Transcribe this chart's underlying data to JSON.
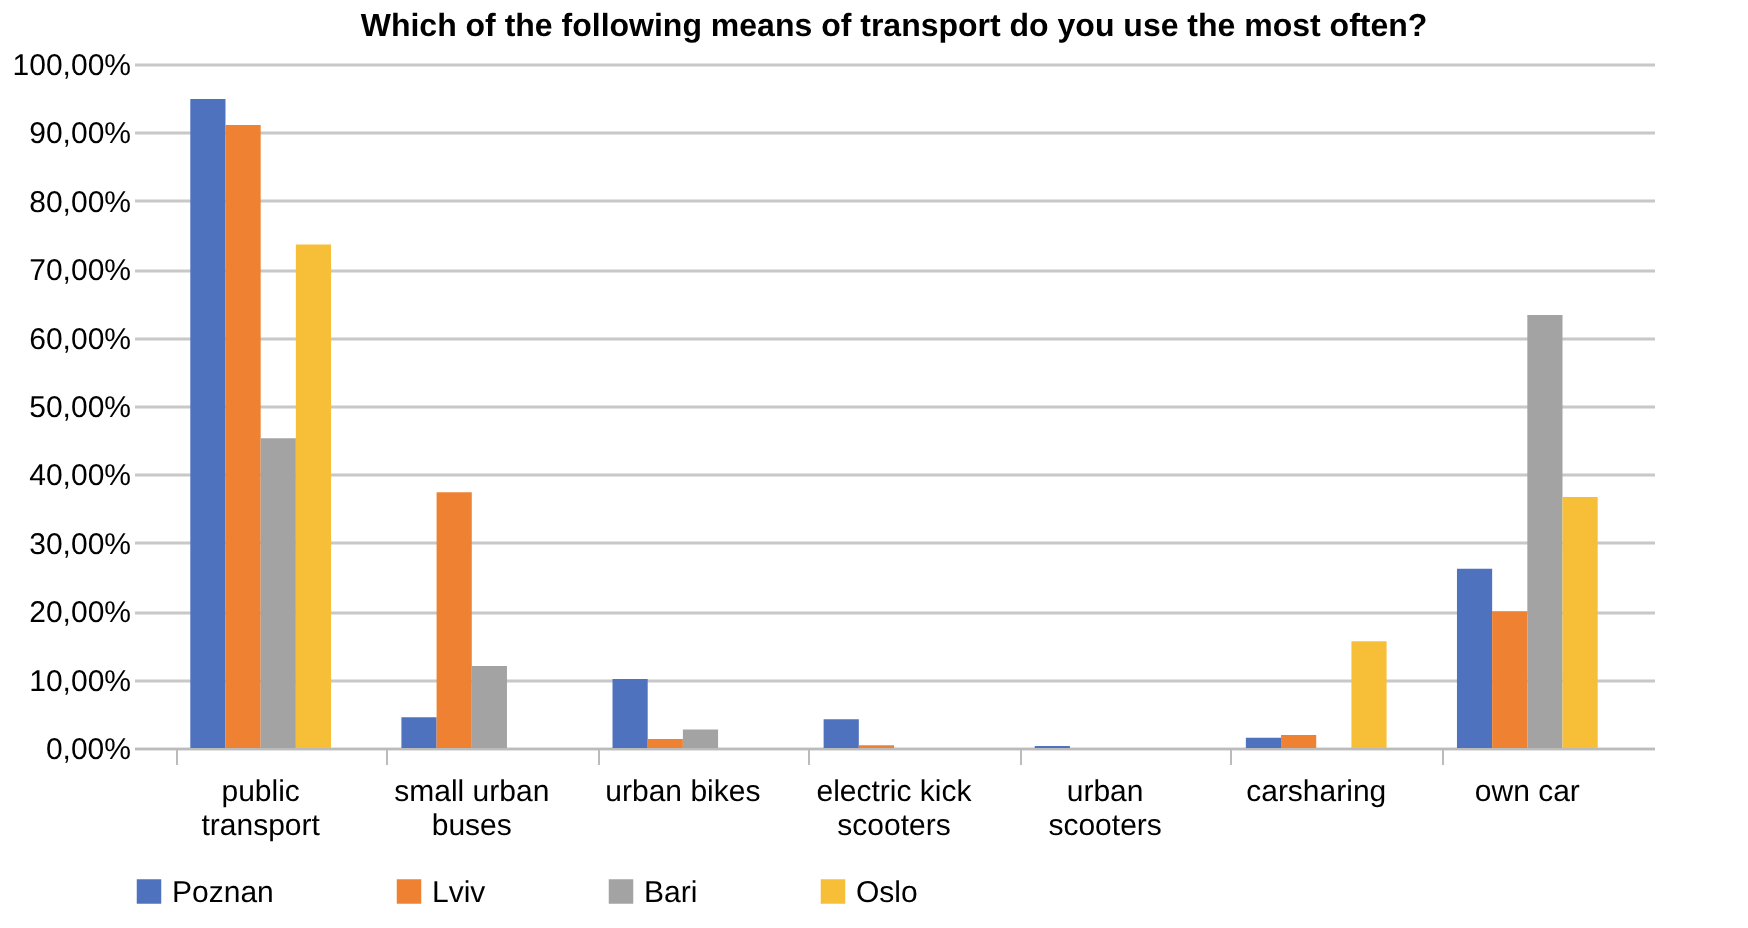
{
  "chart_data": {
    "type": "bar",
    "title": "Which of the following means of transport do you use the most often?",
    "categories": [
      "public transport",
      "small urban buses",
      "urban bikes",
      "electric kick scooters",
      "urban scooters",
      "carsharing",
      "own car"
    ],
    "series": [
      {
        "name": "Poznan",
        "color": "#4f72be",
        "values": [
          94.9,
          4.5,
          10.1,
          4.2,
          0.3,
          1.5,
          26.2
        ]
      },
      {
        "name": "Lviv",
        "color": "#ef8232",
        "values": [
          91.1,
          37.4,
          1.3,
          0.4,
          0,
          1.9,
          20.0
        ]
      },
      {
        "name": "Bari",
        "color": "#a3a3a3",
        "values": [
          45.3,
          12.0,
          2.7,
          0,
          0,
          0,
          63.3
        ]
      },
      {
        "name": "Oslo",
        "color": "#f7bf38",
        "values": [
          73.6,
          0,
          0,
          0,
          0,
          15.6,
          36.7
        ]
      }
    ],
    "ylim": [
      0,
      100
    ],
    "yticks": [
      {
        "value": 0,
        "label": "0,00%"
      },
      {
        "value": 10,
        "label": "10,00%"
      },
      {
        "value": 20,
        "label": "20,00%"
      },
      {
        "value": 30,
        "label": "30,00%"
      },
      {
        "value": 40,
        "label": "40,00%"
      },
      {
        "value": 50,
        "label": "50,00%"
      },
      {
        "value": 60,
        "label": "60,00%"
      },
      {
        "value": 70,
        "label": "70,00%"
      },
      {
        "value": 80,
        "label": "80,00%"
      },
      {
        "value": 90,
        "label": "90,00%"
      },
      {
        "value": 100,
        "label": "100,00%"
      }
    ],
    "grid": "y",
    "legend": "bottom"
  }
}
